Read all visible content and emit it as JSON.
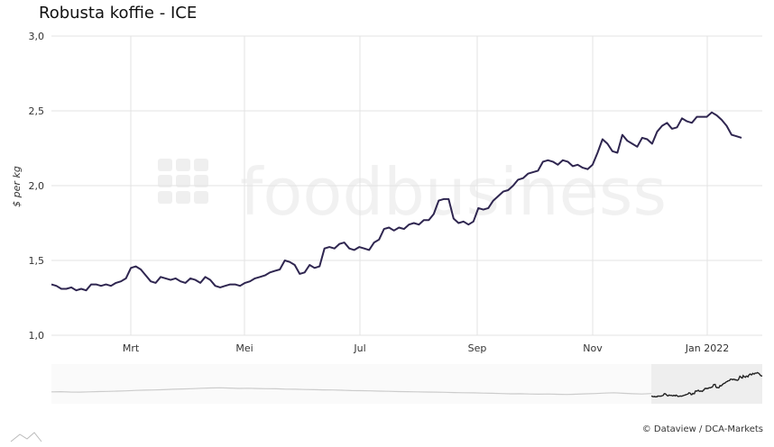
{
  "title": "Robusta koffie - ICE",
  "credit": "© Dataview / DCA-Markets",
  "watermark": "foodbusiness",
  "colors": {
    "line": "#2f2650",
    "grid": "#e3e3e3",
    "navigator_line": "#cccccc",
    "navigator_selected": "#222222",
    "navigator_mask": "#eeeeee"
  },
  "chart_data": {
    "type": "line",
    "title": "Robusta koffie - ICE",
    "ylabel": "$ per kg",
    "xlabel": "",
    "ylim": [
      1.0,
      3.0
    ],
    "y_ticks": [
      "1,0",
      "1,5",
      "2,0",
      "2,5",
      "3,0"
    ],
    "x_ticks": [
      "Mrt",
      "Mei",
      "Jul",
      "Sep",
      "Nov",
      "Jan 2022"
    ],
    "grid": true,
    "series": [
      {
        "values": [
          1.34,
          1.33,
          1.31,
          1.31,
          1.32,
          1.3,
          1.31,
          1.3,
          1.34,
          1.34,
          1.33,
          1.34,
          1.33,
          1.35,
          1.36,
          1.38,
          1.45,
          1.46,
          1.44,
          1.4,
          1.36,
          1.35,
          1.39,
          1.38,
          1.37,
          1.38,
          1.36,
          1.35,
          1.38,
          1.37,
          1.35,
          1.39,
          1.37,
          1.33,
          1.32,
          1.33,
          1.34,
          1.34,
          1.33,
          1.35,
          1.36,
          1.38,
          1.39,
          1.4,
          1.42,
          1.43,
          1.44,
          1.5,
          1.49,
          1.47,
          1.41,
          1.42,
          1.47,
          1.45,
          1.46,
          1.58,
          1.59,
          1.58,
          1.61,
          1.62,
          1.58,
          1.57,
          1.59,
          1.58,
          1.57,
          1.62,
          1.64,
          1.71,
          1.72,
          1.7,
          1.72,
          1.71,
          1.74,
          1.75,
          1.74,
          1.77,
          1.77,
          1.81,
          1.9,
          1.91,
          1.91,
          1.78,
          1.75,
          1.76,
          1.74,
          1.76,
          1.85,
          1.84,
          1.85,
          1.9,
          1.93,
          1.96,
          1.97,
          2.0,
          2.04,
          2.05,
          2.08,
          2.09,
          2.1,
          2.16,
          2.17,
          2.16,
          2.14,
          2.17,
          2.16,
          2.13,
          2.14,
          2.12,
          2.11,
          2.14,
          2.22,
          2.31,
          2.28,
          2.23,
          2.22,
          2.34,
          2.3,
          2.28,
          2.26,
          2.32,
          2.31,
          2.28,
          2.36,
          2.4,
          2.42,
          2.38,
          2.39,
          2.45,
          2.43,
          2.42,
          2.46,
          2.46,
          2.46,
          2.49,
          2.47,
          2.44,
          2.4,
          2.34,
          2.33,
          2.32
        ]
      }
    ],
    "navigator_history": [
      0.45,
      0.46,
      0.44,
      0.43,
      0.45,
      0.47,
      0.48,
      0.5,
      0.52,
      0.55,
      0.57,
      0.58,
      0.6,
      0.63,
      0.65,
      0.67,
      0.7,
      0.72,
      0.73,
      0.71,
      0.69,
      0.7,
      0.68,
      0.67,
      0.66,
      0.64,
      0.63,
      0.61,
      0.6,
      0.59,
      0.58,
      0.56,
      0.54,
      0.53,
      0.52,
      0.5,
      0.49,
      0.47,
      0.46,
      0.45,
      0.44,
      0.43,
      0.42,
      0.4,
      0.39,
      0.38,
      0.36,
      0.35,
      0.33,
      0.31,
      0.32,
      0.3,
      0.29,
      0.3,
      0.28,
      0.27,
      0.29,
      0.31,
      0.33,
      0.36,
      0.39,
      0.35,
      0.32,
      0.3,
      0.33
    ]
  }
}
